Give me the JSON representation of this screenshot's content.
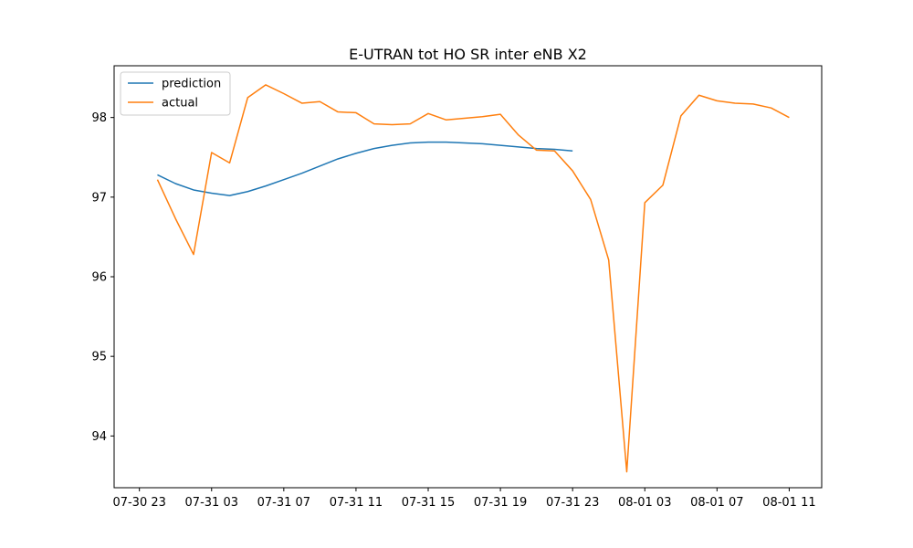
{
  "chart_data": {
    "type": "line",
    "title": "E-UTRAN tot HO SR inter eNB X2",
    "xlabel": "",
    "ylabel": "",
    "x_unit": "hours",
    "x_ticks": [
      {
        "hour": 0,
        "label": "07-30 23"
      },
      {
        "hour": 4,
        "label": "07-31 03"
      },
      {
        "hour": 8,
        "label": "07-31 07"
      },
      {
        "hour": 12,
        "label": "07-31 11"
      },
      {
        "hour": 16,
        "label": "07-31 15"
      },
      {
        "hour": 20,
        "label": "07-31 19"
      },
      {
        "hour": 24,
        "label": "07-31 23"
      },
      {
        "hour": 28,
        "label": "08-01 03"
      },
      {
        "hour": 32,
        "label": "08-01 07"
      },
      {
        "hour": 36,
        "label": "08-01 11"
      }
    ],
    "xlim": [
      -1.4,
      37.8
    ],
    "ylim": [
      93.35,
      98.65
    ],
    "y_ticks": [
      94,
      95,
      96,
      97,
      98
    ],
    "grid": false,
    "legend_position": "upper left",
    "series": [
      {
        "name": "prediction",
        "color": "#1f77b4",
        "x": [
          1,
          2,
          3,
          4,
          5,
          6,
          7,
          8,
          9,
          10,
          11,
          12,
          13,
          14,
          15,
          16,
          17,
          18,
          19,
          20,
          21,
          22,
          23,
          24
        ],
        "y": [
          97.28,
          97.17,
          97.09,
          97.05,
          97.02,
          97.07,
          97.14,
          97.22,
          97.3,
          97.39,
          97.48,
          97.55,
          97.61,
          97.65,
          97.68,
          97.69,
          97.69,
          97.68,
          97.67,
          97.65,
          97.63,
          97.61,
          97.6,
          97.58
        ]
      },
      {
        "name": "actual",
        "color": "#ff7f0e",
        "x": [
          1,
          2,
          3,
          4,
          5,
          6,
          7,
          8,
          9,
          10,
          11,
          12,
          13,
          14,
          15,
          16,
          17,
          18,
          19,
          20,
          21,
          22,
          23,
          24,
          25,
          26,
          27,
          28,
          29,
          30,
          31,
          32,
          33,
          34,
          35,
          36
        ],
        "y": [
          97.22,
          96.73,
          96.28,
          97.56,
          97.43,
          98.25,
          98.41,
          98.3,
          98.18,
          98.2,
          98.07,
          98.06,
          97.92,
          97.91,
          97.92,
          98.05,
          97.97,
          97.99,
          98.01,
          98.04,
          97.78,
          97.59,
          97.58,
          97.33,
          96.97,
          96.21,
          93.55,
          96.93,
          97.15,
          98.02,
          98.28,
          98.21,
          98.18,
          98.17,
          98.12,
          98.0
        ]
      }
    ]
  }
}
